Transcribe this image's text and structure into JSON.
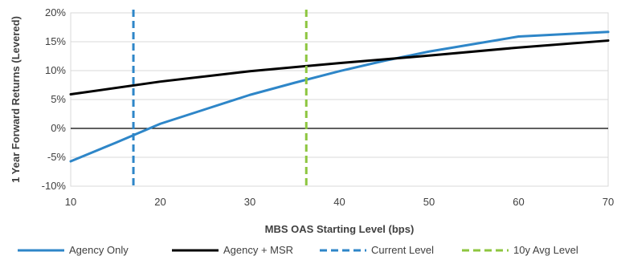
{
  "chart_data": {
    "type": "line",
    "xlabel": "MBS OAS Starting Level (bps)",
    "ylabel": "1 Year Forward Returns (Levered)",
    "xlim": [
      10,
      70
    ],
    "ylim": [
      -10,
      20
    ],
    "x_ticks": [
      "10",
      "20",
      "30",
      "40",
      "50",
      "60",
      "70"
    ],
    "y_ticks": [
      "20%",
      "15%",
      "10%",
      "5%",
      "0%",
      "-5%",
      "-10%"
    ],
    "series": [
      {
        "name": "Agency Only",
        "color": "#2e86c8",
        "style": "solid",
        "x": [
          10,
          15,
          20,
          25,
          30,
          35,
          40,
          45,
          50,
          55,
          60,
          65,
          70
        ],
        "y": [
          -5.7,
          -2.5,
          0.8,
          3.3,
          5.8,
          7.9,
          9.9,
          11.7,
          13.3,
          14.6,
          15.9,
          16.3,
          16.7
        ]
      },
      {
        "name": "Agency + MSR",
        "color": "#000000",
        "style": "solid",
        "x": [
          10,
          20,
          30,
          40,
          50,
          60,
          70
        ],
        "y": [
          5.9,
          8.1,
          9.9,
          11.3,
          12.6,
          14.0,
          15.2
        ]
      },
      {
        "name": "Current Level",
        "color": "#2e86c8",
        "style": "dashed-vertical",
        "x": 17
      },
      {
        "name": "10y Avg Level",
        "color": "#8dc63f",
        "style": "dashed-vertical",
        "x": 36.3
      }
    ],
    "grid": "horizontal",
    "zero_line": true,
    "legend_position": "bottom"
  }
}
